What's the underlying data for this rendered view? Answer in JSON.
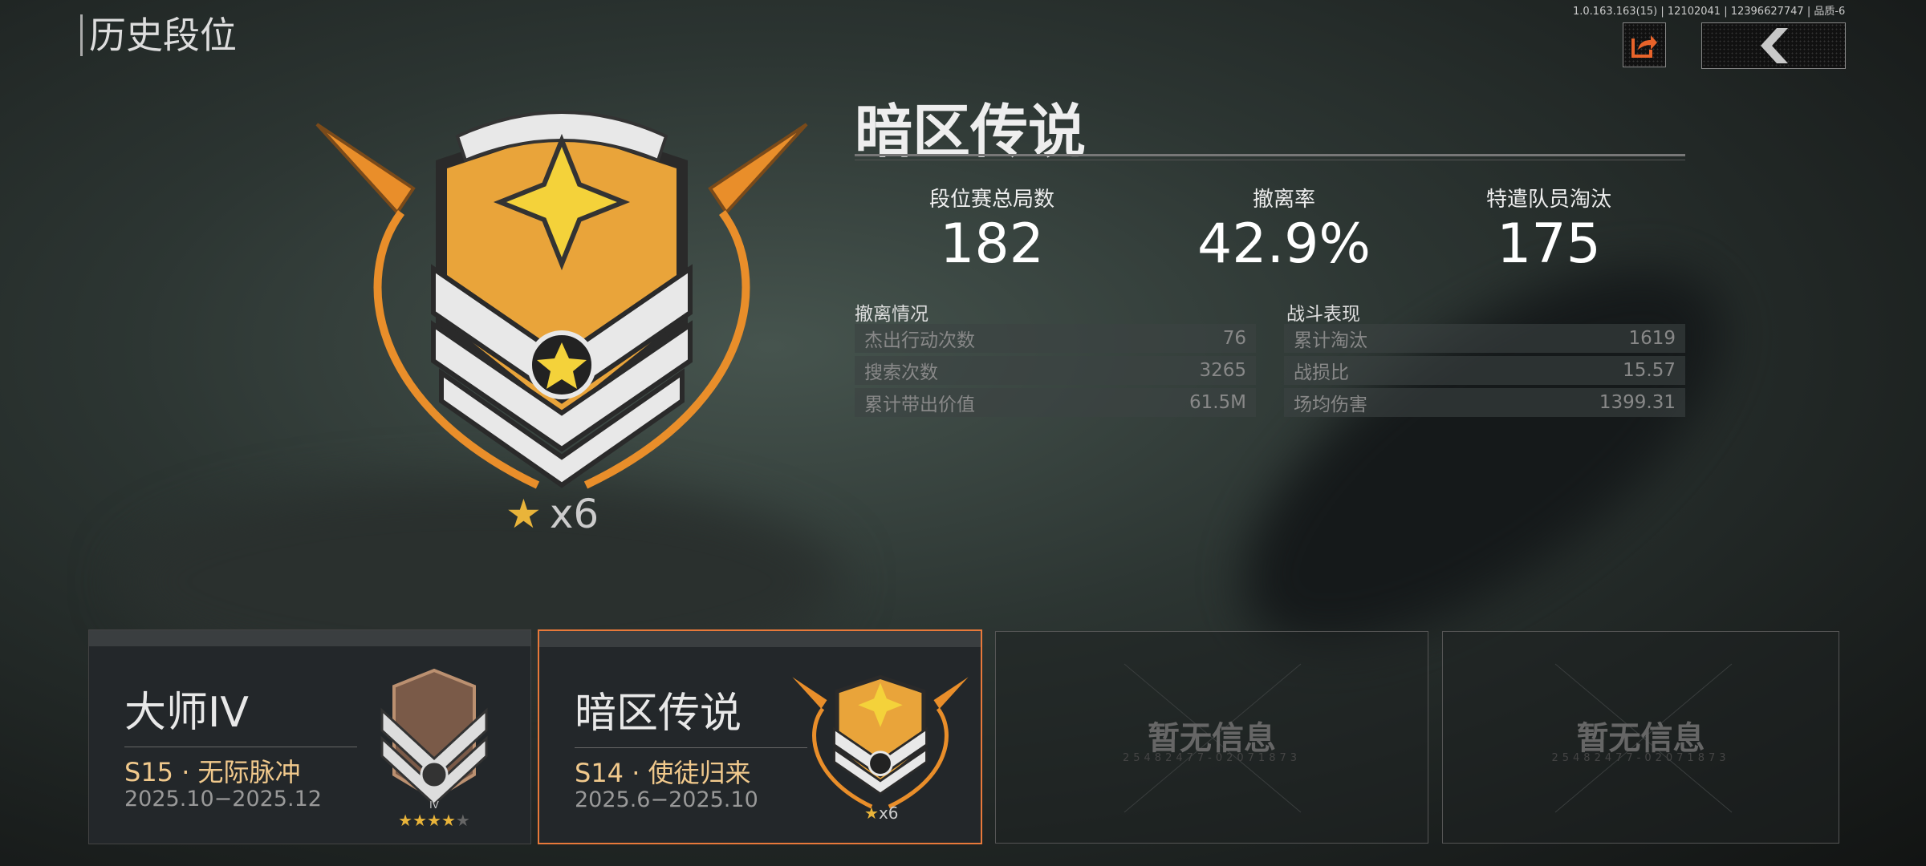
{
  "header": {
    "title": "历史段位",
    "version": "1.0.163.163(15) | 12102041 | 12396627747 | 品质-6",
    "share_icon": "share-icon",
    "back_icon": "chevron-left-icon"
  },
  "current": {
    "rank_name": "暗区传说",
    "star_count": "x6",
    "stats": [
      {
        "label": "段位赛总局数",
        "value": "182"
      },
      {
        "label": "撤离率",
        "value": "42.9%"
      },
      {
        "label": "特遣队员淘汰",
        "value": "175"
      }
    ],
    "extraction": {
      "title": "撤离情况",
      "rows": [
        {
          "label": "杰出行动次数",
          "value": "76"
        },
        {
          "label": "搜索次数",
          "value": "3265"
        },
        {
          "label": "累计带出价值",
          "value": "61.5M"
        }
      ]
    },
    "combat": {
      "title": "战斗表现",
      "rows": [
        {
          "label": "累计淘汰",
          "value": "1619"
        },
        {
          "label": "战损比",
          "value": "15.57"
        },
        {
          "label": "场均伤害",
          "value": "1399.31"
        }
      ]
    }
  },
  "seasons": [
    {
      "rank": "大师IV",
      "season": "S15 · 无际脉冲",
      "dates": "2025.10−2025.12",
      "tier": "IV",
      "stars_filled": 4,
      "stars_total": 5,
      "selected": false
    },
    {
      "rank": "暗区传说",
      "season": "S14 · 使徒归来",
      "dates": "2025.6−2025.10",
      "stars": "x6",
      "selected": true
    },
    {
      "empty_text": "暂无信息",
      "serial": "25482477-02071873"
    },
    {
      "empty_text": "暂无信息",
      "serial": "25482477-02071873"
    }
  ],
  "colors": {
    "accent": "#e8793a",
    "season_text": "#f1c98c",
    "gold": "#e9a43a"
  }
}
